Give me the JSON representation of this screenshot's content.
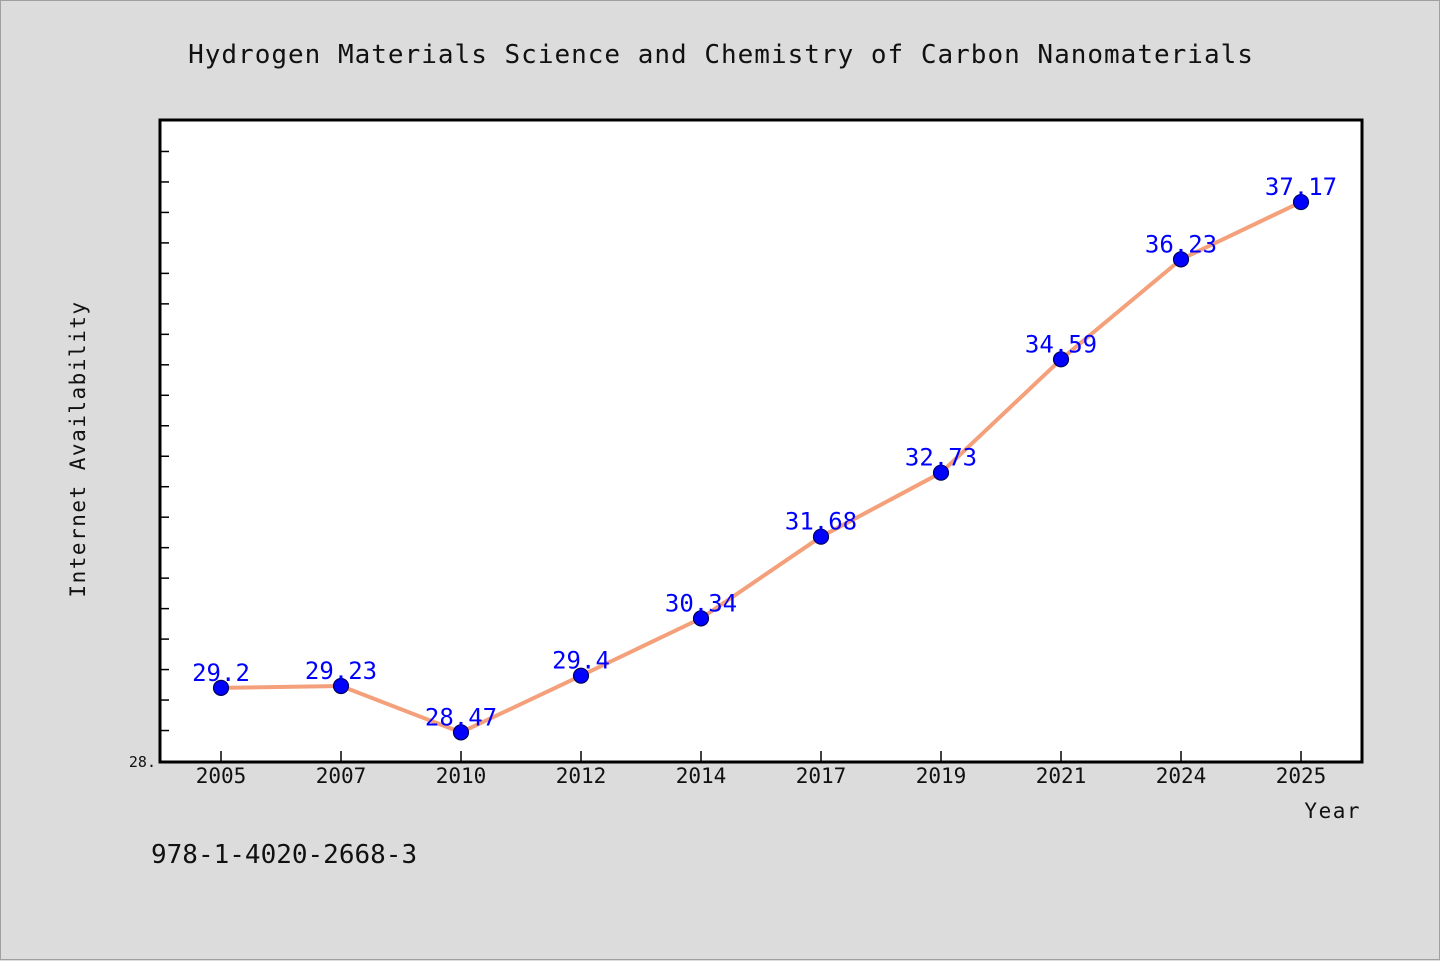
{
  "chart_data": {
    "type": "line",
    "title": "Hydrogen Materials Science and Chemistry of Carbon Nanomaterials",
    "xlabel": "Year",
    "ylabel": "Internet Availability",
    "categories": [
      "2005",
      "2007",
      "2010",
      "2012",
      "2014",
      "2017",
      "2019",
      "2021",
      "2024",
      "2025"
    ],
    "series": [
      {
        "values": [
          29.2,
          29.23,
          28.47,
          29.4,
          30.34,
          31.68,
          32.73,
          34.59,
          36.23,
          37.17
        ],
        "labels": [
          "29.2",
          "29.23",
          "28.47",
          "29.4",
          "30.34",
          "31.68",
          "32.73",
          "34.59",
          "36.23",
          "37.17"
        ]
      }
    ],
    "ylim": [
      28.0,
      38.5
    ],
    "y_min_label": "28.",
    "grid": false,
    "legend": "none",
    "colors": {
      "line": "#f4a07a",
      "marker": "#0000ff",
      "data_label": "#0000ff",
      "background": "#dcdcdc",
      "plot_background": "#ffffff"
    }
  },
  "footer": {
    "isbn": "978-1-4020-2668-3"
  }
}
